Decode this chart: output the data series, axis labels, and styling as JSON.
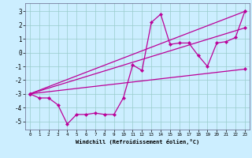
{
  "xlabel": "Windchill (Refroidissement éolien,°C)",
  "xlim": [
    -0.5,
    23.5
  ],
  "ylim": [
    -5.6,
    3.6
  ],
  "yticks": [
    -5,
    -4,
    -3,
    -2,
    -1,
    0,
    1,
    2,
    3
  ],
  "xticks": [
    0,
    1,
    2,
    3,
    4,
    5,
    6,
    7,
    8,
    9,
    10,
    11,
    12,
    13,
    14,
    15,
    16,
    17,
    18,
    19,
    20,
    21,
    22,
    23
  ],
  "bg_color": "#cceeff",
  "grid_color": "#99cccc",
  "line_color": "#bb0099",
  "line_width": 0.9,
  "marker": "D",
  "marker_size": 2.2,
  "lines": [
    {
      "x": [
        0,
        1,
        2,
        3,
        4,
        5,
        6,
        7,
        8,
        9,
        10,
        11,
        12,
        13,
        14,
        15,
        16,
        17,
        18,
        19,
        20,
        21,
        22,
        23
      ],
      "y": [
        -3.0,
        -3.3,
        -3.3,
        -3.8,
        -5.2,
        -4.5,
        -4.5,
        -4.4,
        -4.5,
        -4.5,
        -3.3,
        -0.9,
        -1.3,
        2.2,
        2.8,
        0.6,
        0.7,
        0.7,
        -0.2,
        -1.0,
        0.7,
        0.8,
        1.1,
        3.0
      ]
    },
    {
      "x": [
        0,
        23
      ],
      "y": [
        -3.0,
        3.0
      ]
    },
    {
      "x": [
        0,
        23
      ],
      "y": [
        -3.0,
        1.8
      ]
    },
    {
      "x": [
        0,
        23
      ],
      "y": [
        -3.0,
        -1.2
      ]
    }
  ]
}
